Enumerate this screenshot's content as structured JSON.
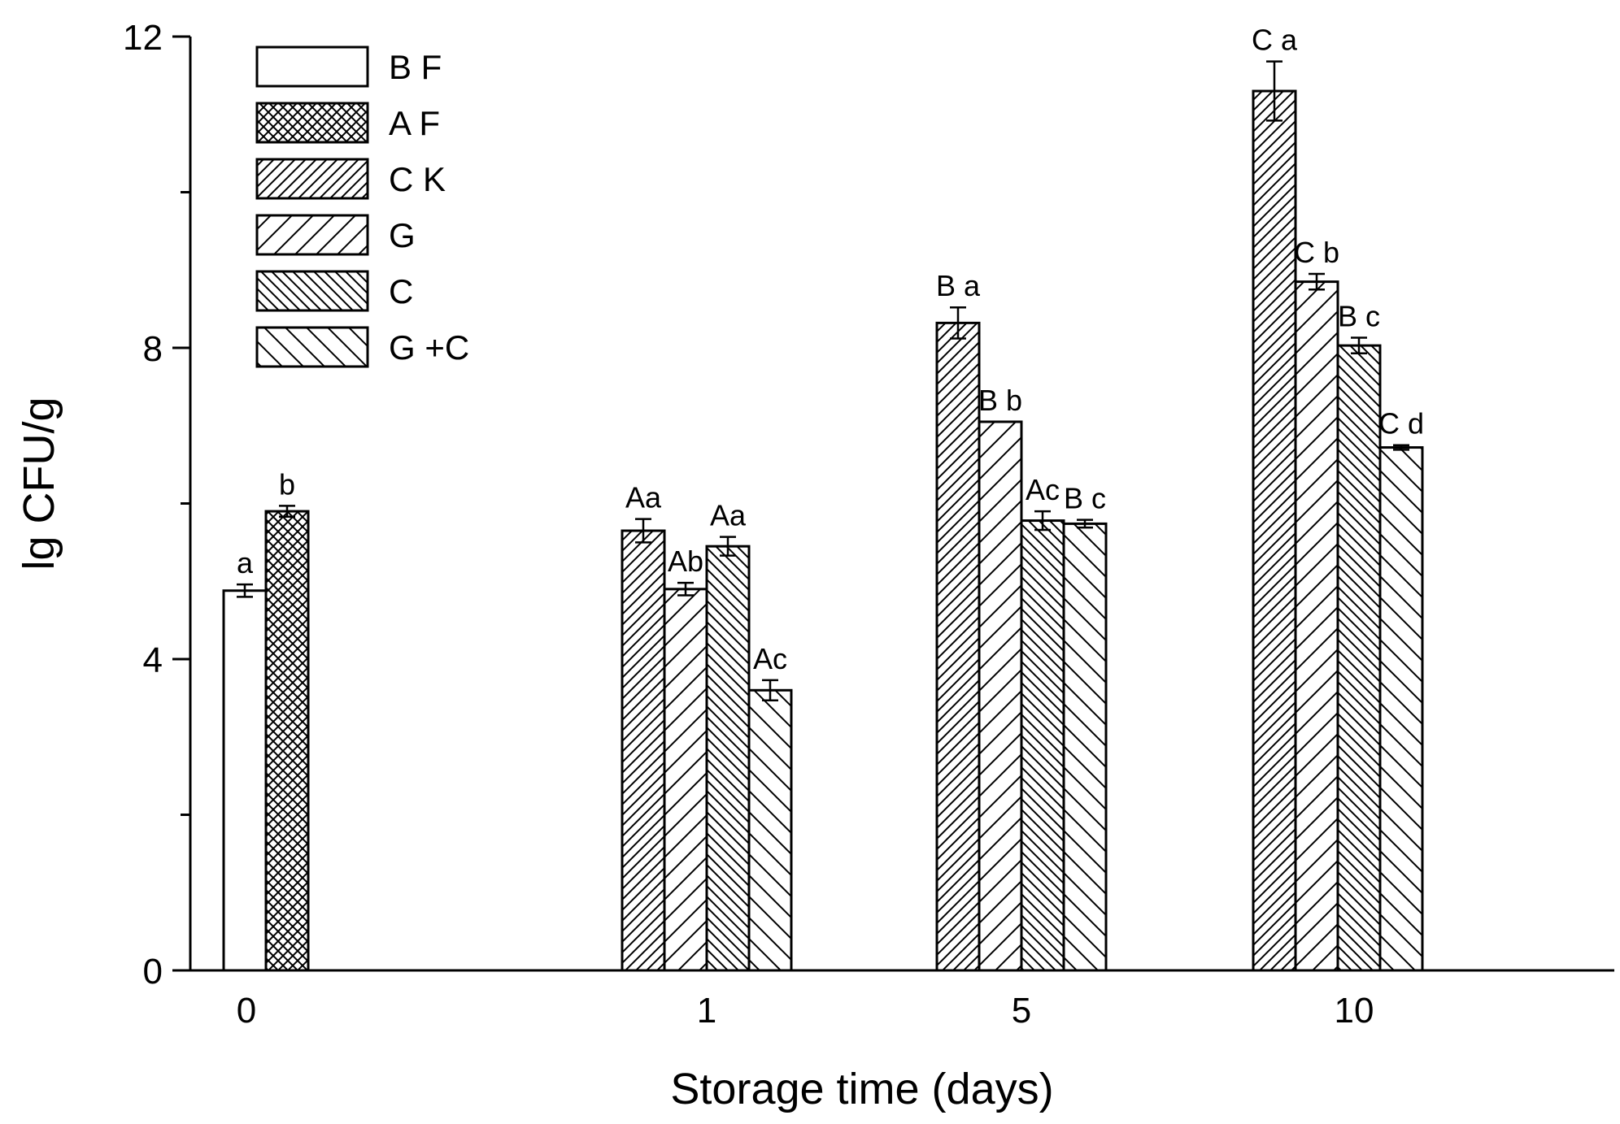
{
  "chart_data": {
    "type": "bar",
    "title": "",
    "xlabel": "Storage time (days)",
    "ylabel": "lg CFU/g",
    "ylim": [
      0,
      12
    ],
    "yticks": [
      0,
      4,
      8,
      12
    ],
    "grid": false,
    "legend_position": "top-left",
    "categories": [
      "0",
      "1",
      "5",
      "10"
    ],
    "series": [
      {
        "name": "B F",
        "pattern": "blank",
        "values": [
          4.88,
          null,
          null,
          null
        ],
        "errors": [
          0.08,
          null,
          null,
          null
        ],
        "labels": [
          "a",
          "",
          "",
          ""
        ]
      },
      {
        "name": "A F",
        "pattern": "crosshatch",
        "values": [
          5.9,
          null,
          null,
          null
        ],
        "errors": [
          0.07,
          null,
          null,
          null
        ],
        "labels": [
          "b",
          "",
          "",
          ""
        ]
      },
      {
        "name": "C K",
        "pattern": "dense-diagonal",
        "values": [
          null,
          5.65,
          8.32,
          11.3
        ],
        "errors": [
          null,
          0.15,
          0.2,
          0.38
        ],
        "labels": [
          "",
          "Aa",
          "B a",
          "C a"
        ]
      },
      {
        "name": "G",
        "pattern": "wide-diagonal",
        "values": [
          null,
          4.9,
          7.05,
          8.85
        ],
        "errors": [
          null,
          0.08,
          0.0,
          0.1
        ],
        "labels": [
          "",
          "Ab",
          "B b",
          "C b"
        ]
      },
      {
        "name": "C",
        "pattern": "dense-backdiagonal",
        "values": [
          null,
          5.45,
          5.78,
          8.03
        ],
        "errors": [
          null,
          0.12,
          0.12,
          0.1
        ],
        "labels": [
          "",
          "Aa",
          "Ac",
          "B c"
        ]
      },
      {
        "name": "G +C",
        "pattern": "wide-backdiagonal",
        "values": [
          null,
          3.6,
          5.74,
          6.72
        ],
        "errors": [
          null,
          0.13,
          0.05,
          0.03
        ],
        "labels": [
          "",
          "Ac",
          "B c",
          "C d"
        ]
      }
    ]
  }
}
